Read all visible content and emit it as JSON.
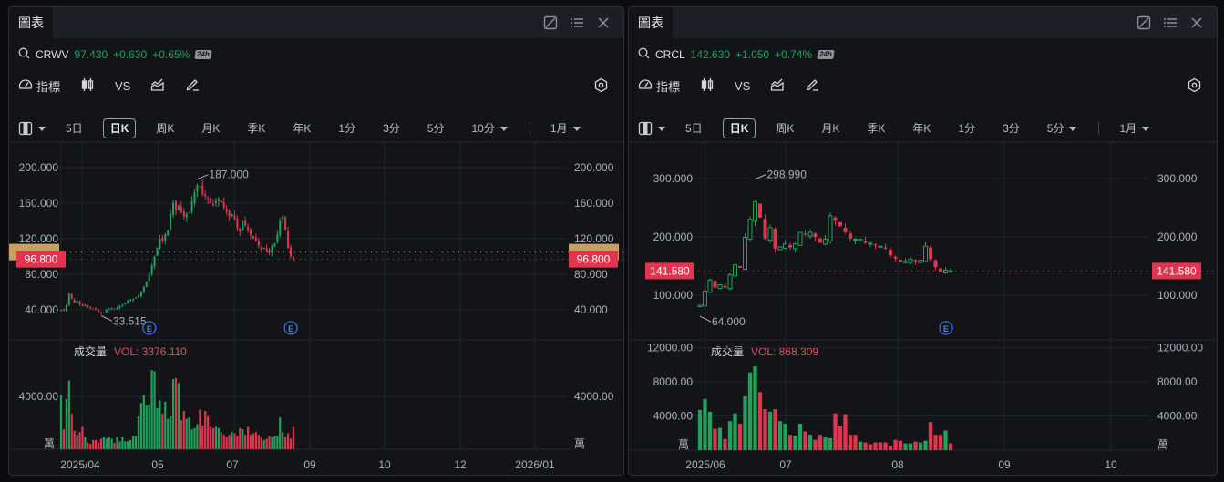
{
  "panels": [
    {
      "tab_label": "圖表",
      "symbol": "CRWV",
      "price": "97.430",
      "change": "+0.630",
      "change_pct": "+0.65%",
      "session_badge": "24h",
      "tools": {
        "indicators": "指標",
        "compare": "VS"
      },
      "periods": [
        "5日",
        "日K",
        "周K",
        "月K",
        "季K",
        "年K",
        "1分",
        "3分",
        "5分"
      ],
      "active_period": "日K",
      "minute_dropdown": "10分",
      "range_dropdown": "1月",
      "price_axis": [
        "200.000",
        "160.000",
        "120.000",
        "80.000",
        "40.000"
      ],
      "high_label": "187.000",
      "low_label": "33.515",
      "last_price_label": "96.800",
      "ref_price_label": "105.000",
      "volume_title": "成交量",
      "volume_value": "VOL: 3376.110",
      "volume_axis": [
        "4000.00"
      ],
      "volume_unit": "萬",
      "time_axis": [
        "2025/04",
        "05",
        "07",
        "09",
        "10",
        "12",
        "2026/01"
      ],
      "earnings_marker": "E"
    },
    {
      "tab_label": "圖表",
      "symbol": "CRCL",
      "price": "142.630",
      "change": "+1.050",
      "change_pct": "+0.74%",
      "session_badge": "24h",
      "tools": {
        "indicators": "指標",
        "compare": "VS"
      },
      "periods": [
        "5日",
        "日K",
        "周K",
        "月K",
        "季K",
        "年K",
        "1分",
        "3分"
      ],
      "active_period": "日K",
      "minute_dropdown": "5分",
      "range_dropdown": "1月",
      "price_axis": [
        "300.000",
        "200.000",
        "100.000"
      ],
      "high_label": "298.990",
      "low_label": "64.000",
      "last_price_label": "141.580",
      "volume_title": "成交量",
      "volume_value": "VOL: 868.309",
      "volume_axis": [
        "12000.00",
        "8000.00",
        "4000.00"
      ],
      "volume_unit": "萬",
      "time_axis": [
        "2025/06",
        "07",
        "08",
        "09",
        "10"
      ],
      "earnings_marker": "E"
    }
  ],
  "colors": {
    "up": "#1fa35c",
    "down": "#e0344f",
    "ref": "#c9a063",
    "bg": "#131418"
  },
  "chart_data": [
    {
      "type": "candlestick",
      "title": "CRWV 日K",
      "ylim": [
        25,
        210
      ],
      "yticks": [
        40,
        80,
        120,
        160,
        200
      ],
      "x_ticks": [
        "2025/04",
        "05",
        "07",
        "09",
        "10",
        "12",
        "2026/01"
      ],
      "annotations": {
        "high": 187.0,
        "low": 33.515,
        "last": 96.8,
        "ref": 105.0
      },
      "close_series_approx": [
        40,
        39,
        45,
        58,
        52,
        48,
        50,
        46,
        44,
        45,
        43,
        42,
        41,
        40,
        38,
        36,
        37,
        40,
        41,
        42,
        41,
        42,
        44,
        46,
        48,
        50,
        51,
        52,
        54,
        56,
        60,
        66,
        72,
        80,
        90,
        100,
        110,
        120,
        118,
        125,
        130,
        148,
        160,
        152,
        158,
        150,
        145,
        148,
        150,
        162,
        172,
        180,
        178,
        170,
        168,
        165,
        160,
        158,
        162,
        165,
        160,
        155,
        150,
        145,
        148,
        142,
        132,
        128,
        140,
        135,
        130,
        124,
        120,
        118,
        112,
        108,
        110,
        106,
        104,
        112,
        115,
        125,
        140,
        145,
        130,
        110,
        100,
        97
      ],
      "volume_series_approx": [
        4100,
        1500,
        3800,
        5200,
        2700,
        1400,
        1100,
        1300,
        1700,
        900,
        500,
        400,
        700,
        700,
        500,
        800,
        900,
        800,
        900,
        800,
        500,
        900,
        600,
        900,
        600,
        600,
        700,
        1000,
        1000,
        2500,
        3500,
        4100,
        3300,
        3400,
        6000,
        5900,
        3100,
        3700,
        2700,
        3600,
        2300,
        2500,
        5300,
        5400,
        5000,
        2200,
        2900,
        2300,
        2400,
        1500,
        1600,
        1900,
        3000,
        1800,
        2900,
        2500,
        1700,
        1600,
        1700,
        1600,
        1300,
        1100,
        900,
        1100,
        1300,
        1200,
        1000,
        1600,
        1500,
        1100,
        1700,
        1100,
        1200,
        1300,
        1100,
        900,
        700,
        800,
        1000,
        900,
        1000,
        1000,
        2400,
        1300,
        900,
        1200,
        800,
        1700,
        1700,
        1900,
        2700,
        3600,
        5100,
        5200,
        3300
      ]
    },
    {
      "type": "candlestick",
      "title": "CRCL 日K",
      "ylim": [
        50,
        330
      ],
      "yticks": [
        100,
        200,
        300
      ],
      "x_ticks": [
        "2025/06",
        "07",
        "08",
        "09",
        "10"
      ],
      "annotations": {
        "high": 298.99,
        "low": 64.0,
        "last": 141.58
      },
      "close_series_approx": [
        83,
        107,
        126,
        113,
        118,
        113,
        135,
        152,
        147,
        199,
        230,
        260,
        233,
        197,
        216,
        180,
        183,
        188,
        182,
        188,
        208,
        204,
        208,
        200,
        190,
        196,
        236,
        228,
        218,
        208,
        197,
        196,
        196,
        190,
        189,
        186,
        184,
        180,
        168,
        163,
        158,
        158,
        162,
        158,
        160,
        184,
        162,
        148,
        140,
        143,
        142
      ],
      "volume_series_approx": [
        4700,
        6000,
        4500,
        2500,
        2600,
        1300,
        3400,
        4300,
        3100,
        6300,
        9100,
        9800,
        6800,
        4800,
        4500,
        4800,
        3400,
        3100,
        1800,
        1700,
        3100,
        2200,
        1800,
        1200,
        1800,
        1500,
        1400,
        4300,
        2800,
        4200,
        1800,
        1800,
        1000,
        900,
        700,
        900,
        900,
        900,
        500,
        1200,
        1100,
        800,
        800,
        1000,
        900,
        1100,
        3300,
        1800,
        1800,
        2300,
        800
      ]
    }
  ]
}
